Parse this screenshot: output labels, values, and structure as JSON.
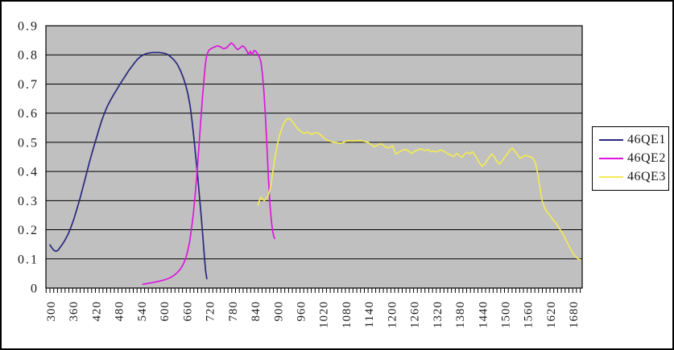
{
  "chart_data": {
    "type": "line",
    "title": "",
    "xlabel": "",
    "ylabel": "",
    "grid": "horizontal",
    "plot_background": "#c0c0c0",
    "axis_color": "#000000",
    "label_color": "#1a1a1a",
    "x_axis": {
      "min": 300,
      "max": 1700,
      "tick_step": 60,
      "minor_tick_step": 10,
      "tick_labels": [
        "300",
        "360",
        "420",
        "480",
        "540",
        "600",
        "660",
        "720",
        "780",
        "840",
        "900",
        "960",
        "1020",
        "1080",
        "1140",
        "1200",
        "1260",
        "1320",
        "1380",
        "1440",
        "1500",
        "1560",
        "1620",
        "1680"
      ]
    },
    "y_axis": {
      "min": 0,
      "max": 0.9,
      "tick_step": 0.1,
      "tick_labels": [
        "0",
        "0.1",
        "0.2",
        "0.3",
        "0.4",
        "0.5",
        "0.6",
        "0.7",
        "0.8",
        "0.9"
      ]
    },
    "legend": {
      "position": "right",
      "items": [
        "46QE1",
        "46QE2",
        "46QE3"
      ]
    },
    "series": [
      {
        "name": "46QE1",
        "color": "#28287e",
        "points": [
          [
            300,
            0.148
          ],
          [
            305,
            0.138
          ],
          [
            310,
            0.13
          ],
          [
            316,
            0.126
          ],
          [
            322,
            0.13
          ],
          [
            328,
            0.142
          ],
          [
            334,
            0.152
          ],
          [
            340,
            0.165
          ],
          [
            348,
            0.185
          ],
          [
            356,
            0.21
          ],
          [
            364,
            0.24
          ],
          [
            372,
            0.275
          ],
          [
            380,
            0.31
          ],
          [
            388,
            0.35
          ],
          [
            396,
            0.39
          ],
          [
            404,
            0.43
          ],
          [
            412,
            0.468
          ],
          [
            420,
            0.503
          ],
          [
            428,
            0.538
          ],
          [
            436,
            0.572
          ],
          [
            444,
            0.6
          ],
          [
            452,
            0.625
          ],
          [
            460,
            0.645
          ],
          [
            468,
            0.663
          ],
          [
            476,
            0.68
          ],
          [
            484,
            0.698
          ],
          [
            492,
            0.714
          ],
          [
            500,
            0.73
          ],
          [
            508,
            0.746
          ],
          [
            516,
            0.76
          ],
          [
            524,
            0.774
          ],
          [
            532,
            0.786
          ],
          [
            540,
            0.795
          ],
          [
            548,
            0.801
          ],
          [
            556,
            0.805
          ],
          [
            564,
            0.807
          ],
          [
            572,
            0.808
          ],
          [
            580,
            0.808
          ],
          [
            588,
            0.808
          ],
          [
            596,
            0.807
          ],
          [
            604,
            0.805
          ],
          [
            612,
            0.8
          ],
          [
            620,
            0.792
          ],
          [
            628,
            0.782
          ],
          [
            636,
            0.768
          ],
          [
            644,
            0.748
          ],
          [
            652,
            0.722
          ],
          [
            658,
            0.698
          ],
          [
            664,
            0.668
          ],
          [
            670,
            0.625
          ],
          [
            675,
            0.575
          ],
          [
            680,
            0.515
          ],
          [
            685,
            0.45
          ],
          [
            690,
            0.385
          ],
          [
            695,
            0.31
          ],
          [
            700,
            0.235
          ],
          [
            704,
            0.17
          ],
          [
            708,
            0.105
          ],
          [
            711,
            0.06
          ],
          [
            714,
            0.032
          ]
        ]
      },
      {
        "name": "46QE2",
        "color": "#dd16dd",
        "points": [
          [
            545,
            0.013
          ],
          [
            560,
            0.016
          ],
          [
            575,
            0.02
          ],
          [
            590,
            0.024
          ],
          [
            605,
            0.029
          ],
          [
            618,
            0.036
          ],
          [
            628,
            0.044
          ],
          [
            637,
            0.054
          ],
          [
            645,
            0.066
          ],
          [
            652,
            0.082
          ],
          [
            658,
            0.1
          ],
          [
            664,
            0.128
          ],
          [
            669,
            0.16
          ],
          [
            674,
            0.205
          ],
          [
            679,
            0.26
          ],
          [
            683,
            0.315
          ],
          [
            687,
            0.375
          ],
          [
            691,
            0.44
          ],
          [
            695,
            0.515
          ],
          [
            699,
            0.59
          ],
          [
            703,
            0.66
          ],
          [
            707,
            0.72
          ],
          [
            710,
            0.765
          ],
          [
            713,
            0.792
          ],
          [
            716,
            0.806
          ],
          [
            720,
            0.817
          ],
          [
            726,
            0.822
          ],
          [
            734,
            0.827
          ],
          [
            742,
            0.831
          ],
          [
            750,
            0.828
          ],
          [
            758,
            0.821
          ],
          [
            766,
            0.824
          ],
          [
            773,
            0.834
          ],
          [
            779,
            0.841
          ],
          [
            784,
            0.836
          ],
          [
            790,
            0.825
          ],
          [
            796,
            0.818
          ],
          [
            802,
            0.824
          ],
          [
            808,
            0.831
          ],
          [
            814,
            0.826
          ],
          [
            819,
            0.815
          ],
          [
            824,
            0.802
          ],
          [
            829,
            0.812
          ],
          [
            834,
            0.801
          ],
          [
            839,
            0.815
          ],
          [
            844,
            0.812
          ],
          [
            849,
            0.801
          ],
          [
            853,
            0.793
          ],
          [
            857,
            0.776
          ],
          [
            861,
            0.735
          ],
          [
            865,
            0.672
          ],
          [
            869,
            0.585
          ],
          [
            873,
            0.48
          ],
          [
            877,
            0.375
          ],
          [
            881,
            0.285
          ],
          [
            885,
            0.225
          ],
          [
            888,
            0.195
          ],
          [
            891,
            0.178
          ],
          [
            893,
            0.17
          ]
        ]
      },
      {
        "name": "46QE3",
        "color": "#f2ea55",
        "points": [
          [
            849,
            0.285
          ],
          [
            853,
            0.3
          ],
          [
            857,
            0.312
          ],
          [
            861,
            0.304
          ],
          [
            866,
            0.3
          ],
          [
            871,
            0.307
          ],
          [
            876,
            0.318
          ],
          [
            880,
            0.333
          ],
          [
            884,
            0.356
          ],
          [
            888,
            0.395
          ],
          [
            892,
            0.43
          ],
          [
            896,
            0.462
          ],
          [
            900,
            0.49
          ],
          [
            905,
            0.518
          ],
          [
            910,
            0.54
          ],
          [
            915,
            0.558
          ],
          [
            920,
            0.571
          ],
          [
            926,
            0.58
          ],
          [
            932,
            0.582
          ],
          [
            938,
            0.575
          ],
          [
            944,
            0.564
          ],
          [
            951,
            0.551
          ],
          [
            958,
            0.542
          ],
          [
            965,
            0.535
          ],
          [
            972,
            0.53
          ],
          [
            978,
            0.536
          ],
          [
            984,
            0.532
          ],
          [
            991,
            0.527
          ],
          [
            998,
            0.532
          ],
          [
            1005,
            0.533
          ],
          [
            1012,
            0.528
          ],
          [
            1019,
            0.52
          ],
          [
            1026,
            0.512
          ],
          [
            1033,
            0.507
          ],
          [
            1041,
            0.503
          ],
          [
            1050,
            0.5
          ],
          [
            1060,
            0.498
          ],
          [
            1070,
            0.497
          ],
          [
            1080,
            0.503
          ],
          [
            1090,
            0.506
          ],
          [
            1100,
            0.504
          ],
          [
            1110,
            0.506
          ],
          [
            1120,
            0.507
          ],
          [
            1130,
            0.503
          ],
          [
            1140,
            0.5
          ],
          [
            1149,
            0.491
          ],
          [
            1157,
            0.485
          ],
          [
            1165,
            0.49
          ],
          [
            1173,
            0.496
          ],
          [
            1181,
            0.489
          ],
          [
            1189,
            0.481
          ],
          [
            1197,
            0.482
          ],
          [
            1205,
            0.488
          ],
          [
            1213,
            0.46
          ],
          [
            1221,
            0.466
          ],
          [
            1229,
            0.472
          ],
          [
            1238,
            0.476
          ],
          [
            1247,
            0.47
          ],
          [
            1255,
            0.462
          ],
          [
            1263,
            0.47
          ],
          [
            1271,
            0.474
          ],
          [
            1280,
            0.478
          ],
          [
            1289,
            0.472
          ],
          [
            1298,
            0.475
          ],
          [
            1306,
            0.468
          ],
          [
            1314,
            0.47
          ],
          [
            1322,
            0.467
          ],
          [
            1331,
            0.474
          ],
          [
            1340,
            0.47
          ],
          [
            1349,
            0.462
          ],
          [
            1358,
            0.456
          ],
          [
            1366,
            0.451
          ],
          [
            1374,
            0.462
          ],
          [
            1381,
            0.455
          ],
          [
            1388,
            0.448
          ],
          [
            1395,
            0.46
          ],
          [
            1402,
            0.466
          ],
          [
            1409,
            0.46
          ],
          [
            1415,
            0.468
          ],
          [
            1421,
            0.458
          ],
          [
            1428,
            0.443
          ],
          [
            1434,
            0.428
          ],
          [
            1441,
            0.418
          ],
          [
            1448,
            0.426
          ],
          [
            1455,
            0.44
          ],
          [
            1461,
            0.452
          ],
          [
            1467,
            0.46
          ],
          [
            1474,
            0.448
          ],
          [
            1480,
            0.434
          ],
          [
            1487,
            0.425
          ],
          [
            1494,
            0.436
          ],
          [
            1501,
            0.45
          ],
          [
            1508,
            0.462
          ],
          [
            1515,
            0.475
          ],
          [
            1521,
            0.48
          ],
          [
            1527,
            0.47
          ],
          [
            1534,
            0.458
          ],
          [
            1541,
            0.445
          ],
          [
            1548,
            0.45
          ],
          [
            1555,
            0.456
          ],
          [
            1562,
            0.452
          ],
          [
            1569,
            0.45
          ],
          [
            1576,
            0.444
          ],
          [
            1582,
            0.428
          ],
          [
            1588,
            0.39
          ],
          [
            1594,
            0.34
          ],
          [
            1600,
            0.295
          ],
          [
            1607,
            0.272
          ],
          [
            1614,
            0.258
          ],
          [
            1621,
            0.247
          ],
          [
            1629,
            0.233
          ],
          [
            1637,
            0.221
          ],
          [
            1646,
            0.202
          ],
          [
            1655,
            0.184
          ],
          [
            1663,
            0.163
          ],
          [
            1671,
            0.142
          ],
          [
            1679,
            0.123
          ],
          [
            1687,
            0.109
          ],
          [
            1694,
            0.1
          ],
          [
            1700,
            0.097
          ]
        ]
      }
    ]
  }
}
